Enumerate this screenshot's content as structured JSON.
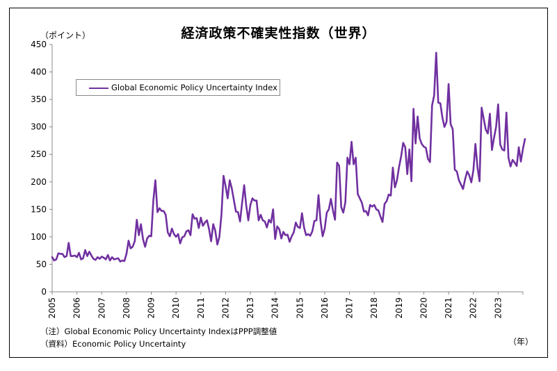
{
  "chart_data": {
    "type": "line",
    "title": "経済政策不確実性指数（世界）",
    "y_unit_label": "（ポイント）",
    "x_unit_label": "（年）",
    "ylim": [
      0,
      450
    ],
    "y_ticks": [
      "0",
      "50",
      "100",
      "150",
      "200",
      "250",
      "300",
      "350",
      "400",
      "450"
    ],
    "x_ticks": [
      "2005",
      "2006",
      "2007",
      "2008",
      "2009",
      "2010",
      "2011",
      "2012",
      "2013",
      "2014",
      "2015",
      "2016",
      "2017",
      "2018",
      "2019",
      "2020",
      "2021",
      "2022",
      "2023"
    ],
    "x_start": "2005-01",
    "x_frequency": "monthly",
    "legend_position": "top-left",
    "grid": false,
    "line_color": "#7030a0",
    "series": [
      {
        "name": "Global Economic Policy Uncertainty Index",
        "values": [
          63,
          57,
          59,
          70,
          69,
          69,
          63,
          65,
          89,
          65,
          65,
          66,
          63,
          71,
          59,
          61,
          76,
          65,
          73,
          66,
          60,
          58,
          63,
          60,
          64,
          62,
          59,
          67,
          57,
          63,
          59,
          60,
          61,
          55,
          57,
          56,
          69,
          93,
          79,
          82,
          92,
          131,
          103,
          123,
          96,
          82,
          97,
          102,
          101,
          166,
          203,
          145,
          152,
          147,
          147,
          140,
          108,
          101,
          115,
          105,
          100,
          105,
          88,
          99,
          101,
          110,
          112,
          103,
          141,
          133,
          134,
          116,
          135,
          120,
          126,
          130,
          114,
          92,
          123,
          111,
          86,
          100,
          141,
          211,
          192,
          170,
          203,
          188,
          167,
          146,
          145,
          128,
          162,
          194,
          157,
          130,
          158,
          170,
          166,
          166,
          130,
          140,
          130,
          128,
          117,
          131,
          126,
          150,
          96,
          119,
          114,
          97,
          109,
          103,
          104,
          91,
          101,
          108,
          126,
          118,
          116,
          143,
          117,
          103,
          105,
          102,
          110,
          129,
          130,
          176,
          128,
          101,
          115,
          144,
          150,
          169,
          148,
          131,
          235,
          229,
          154,
          144,
          163,
          244,
          232,
          273,
          232,
          244,
          178,
          170,
          162,
          146,
          147,
          139,
          158,
          155,
          158,
          150,
          148,
          137,
          127,
          160,
          165,
          177,
          175,
          226,
          190,
          203,
          227,
          246,
          271,
          263,
          214,
          259,
          201,
          333,
          270,
          319,
          279,
          269,
          264,
          262,
          242,
          236,
          339,
          357,
          435,
          344,
          343,
          317,
          300,
          309,
          378,
          305,
          296,
          222,
          219,
          203,
          195,
          187,
          205,
          219,
          212,
          199,
          221,
          269,
          226,
          201,
          335,
          315,
          295,
          288,
          324,
          258,
          280,
          300,
          341,
          268,
          259,
          257,
          326,
          244,
          228,
          240,
          235,
          229,
          263,
          237,
          260,
          278
        ]
      }
    ],
    "notes": [
      "（注）Global Economic Policy Uncertainty IndexはPPP調整値",
      "（資料）Economic Policy Uncertainty"
    ]
  }
}
